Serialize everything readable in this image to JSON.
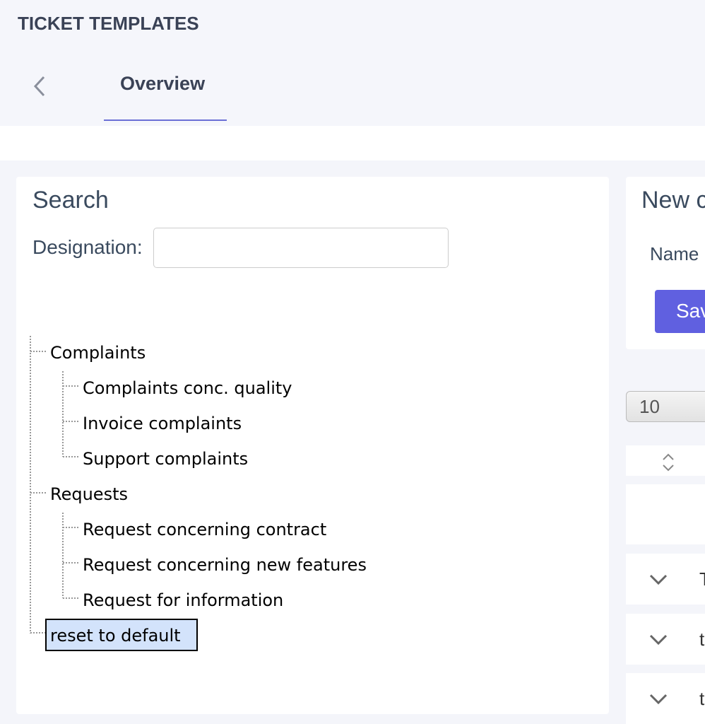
{
  "header": {
    "title": "TICKET TEMPLATES",
    "tab": "Overview"
  },
  "search": {
    "title": "Search",
    "designation_label": "Designation:",
    "tree": [
      {
        "label": "Complaints",
        "children": [
          "Complaints conc. quality",
          "Invoice complaints",
          "Support complaints"
        ]
      },
      {
        "label": "Requests",
        "children": [
          "Request concerning contract",
          "Request concerning new features",
          "Request for information"
        ]
      }
    ],
    "reset": "reset to default"
  },
  "new_panel": {
    "title": "New c",
    "name_label": "Name",
    "save": "Sav"
  },
  "page_size": "10",
  "rows": [
    "T",
    "t",
    "t"
  ]
}
